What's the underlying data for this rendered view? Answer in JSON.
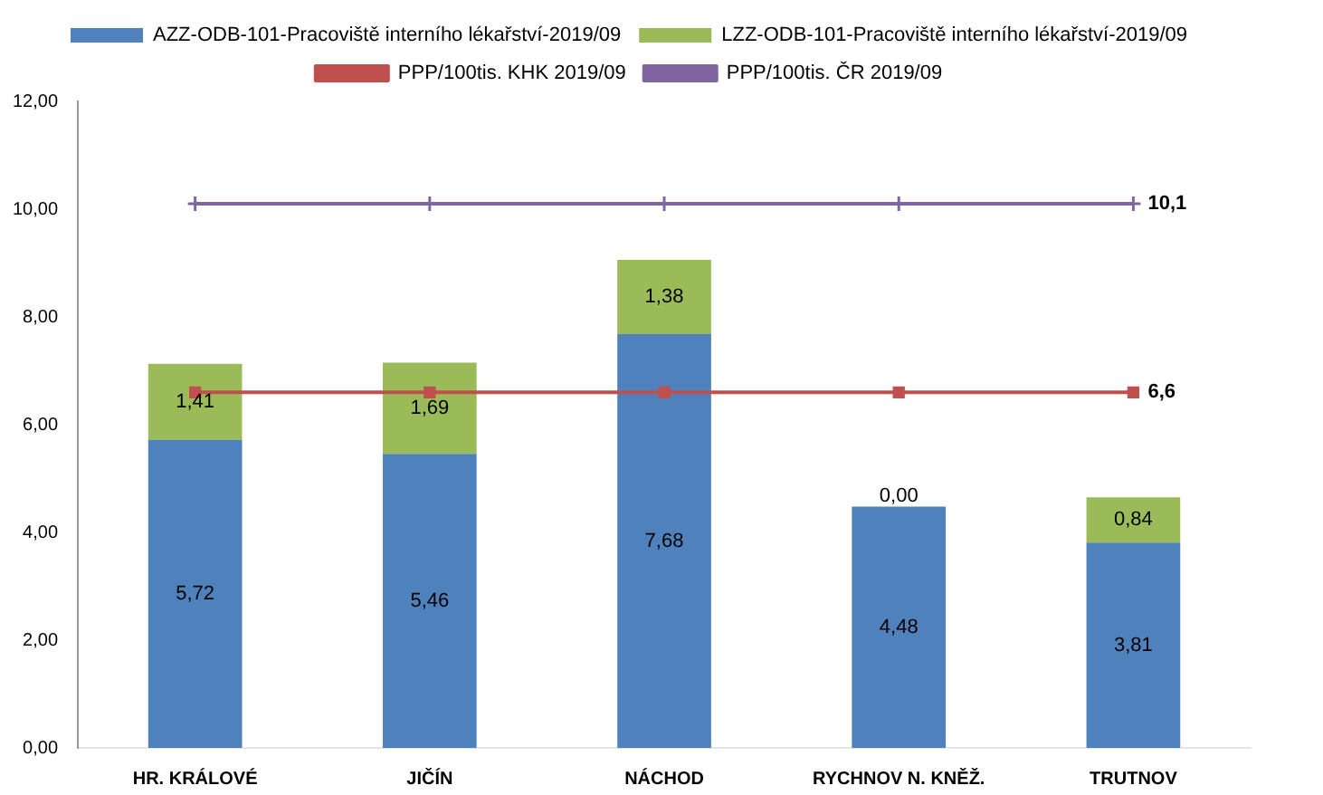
{
  "chart_data": {
    "type": "bar",
    "stacked": true,
    "categories": [
      "HR. KRÁLOVÉ",
      "JIČÍN",
      "NÁCHOD",
      "RYCHNOV N. KNĚŽ.",
      "TRUTNOV"
    ],
    "series": [
      {
        "name": "AZZ-ODB-101-Pracoviště interního lékařství-2019/09",
        "color": "#4f81bd",
        "values": [
          5.72,
          5.46,
          7.68,
          4.48,
          3.81
        ],
        "value_labels": [
          "5,72",
          "5,46",
          "7,68",
          "4,48",
          "3,81"
        ]
      },
      {
        "name": "LZZ-ODB-101-Pracoviště interního lékařství-2019/09",
        "color": "#9bbb59",
        "values": [
          1.41,
          1.69,
          1.38,
          0.0,
          0.84
        ],
        "value_labels": [
          "1,41",
          "1,69",
          "1,38",
          "0,00",
          "0,84"
        ]
      },
      {
        "name": "PPP/100tis. KHK 2019/09",
        "type": "line",
        "marker": "square",
        "color": "#c0504d",
        "values": [
          6.6,
          6.6,
          6.6,
          6.6,
          6.6
        ],
        "value_labels": [
          null,
          null,
          null,
          null,
          "6,6"
        ]
      },
      {
        "name": "PPP/100tis. ČR 2019/09",
        "type": "line",
        "marker": "cross",
        "color": "#8064a2",
        "values": [
          10.1,
          10.1,
          10.1,
          10.1,
          10.1
        ],
        "value_labels": [
          null,
          null,
          null,
          null,
          "10,1"
        ]
      }
    ],
    "ylim": [
      0,
      12
    ],
    "yticks": [
      {
        "value": 0,
        "label": "0,00"
      },
      {
        "value": 2,
        "label": "2,00"
      },
      {
        "value": 4,
        "label": "4,00"
      },
      {
        "value": 6,
        "label": "6,00"
      },
      {
        "value": 8,
        "label": "8,00"
      },
      {
        "value": 10,
        "label": "10,00"
      },
      {
        "value": 12,
        "label": "12,00"
      }
    ],
    "grid": false,
    "legend": "top"
  }
}
